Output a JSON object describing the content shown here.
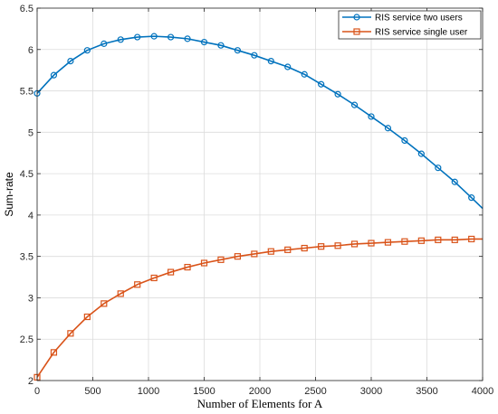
{
  "chart_data": {
    "type": "line",
    "title": "",
    "xlabel": "Number of Elements for A",
    "ylabel": "Sum-rate",
    "xlim": [
      0,
      4000
    ],
    "ylim": [
      2,
      6.5
    ],
    "xticks": [
      0,
      500,
      1000,
      1500,
      2000,
      2500,
      3000,
      3500,
      4000
    ],
    "yticks": [
      2,
      2.5,
      3,
      3.5,
      4,
      4.5,
      5,
      5.5,
      6,
      6.5
    ],
    "grid": true,
    "legend_position": "top-right",
    "x": [
      0,
      150,
      300,
      450,
      600,
      750,
      900,
      1050,
      1200,
      1350,
      1500,
      1650,
      1800,
      1950,
      2100,
      2250,
      2400,
      2550,
      2700,
      2850,
      3000,
      3150,
      3300,
      3450,
      3600,
      3750,
      3900
    ],
    "series": [
      {
        "name": "RIS service two users",
        "color": "#0072BD",
        "marker": "circle",
        "values": [
          5.47,
          5.69,
          5.86,
          5.99,
          6.07,
          6.12,
          6.15,
          6.16,
          6.15,
          6.13,
          6.09,
          6.05,
          5.99,
          5.93,
          5.86,
          5.79,
          5.7,
          5.58,
          5.46,
          5.33,
          5.19,
          5.05,
          4.9,
          4.74,
          4.57,
          4.4,
          4.21
        ],
        "line_end": {
          "x": 4000,
          "y": 4.08
        }
      },
      {
        "name": "RIS service single user",
        "color": "#D95319",
        "marker": "square",
        "values": [
          2.04,
          2.34,
          2.57,
          2.77,
          2.93,
          3.05,
          3.16,
          3.24,
          3.31,
          3.37,
          3.42,
          3.46,
          3.5,
          3.53,
          3.56,
          3.58,
          3.6,
          3.62,
          3.63,
          3.65,
          3.66,
          3.67,
          3.68,
          3.69,
          3.7,
          3.7,
          3.71
        ],
        "line_end": {
          "x": 4000,
          "y": 3.71
        }
      }
    ]
  }
}
